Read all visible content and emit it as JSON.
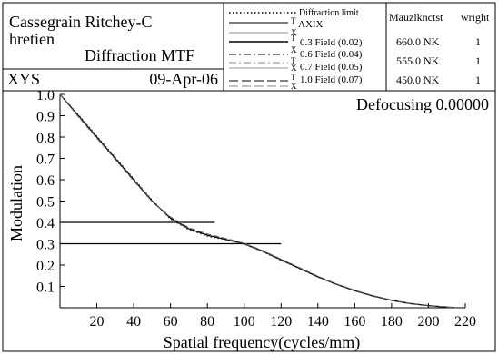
{
  "header": {
    "title_line1": "Cassegrain Ritchey-C",
    "title_line2a": "hretien",
    "title_line2b": "Diffraction MTF",
    "system": "XYS",
    "date": "09-Apr-06"
  },
  "legend": {
    "entries": [
      {
        "tag": "",
        "label": "Diffraction limit"
      },
      {
        "tag": "T",
        "label": "AXIX"
      },
      {
        "tag": "X",
        "label": ""
      },
      {
        "tag": "T",
        "label": "0.3  Field (0.02)"
      },
      {
        "tag": "X",
        "label": "0.6  Field (0.04)"
      },
      {
        "tag": "T",
        "label": ""
      },
      {
        "tag": "X",
        "label": "0.7  Field (0.05)"
      },
      {
        "tag": "T",
        "label": "1.0  Field (0.07)"
      },
      {
        "tag": "X",
        "label": ""
      }
    ]
  },
  "wavelengths": {
    "col1_header": "Mauzlknctst",
    "col2_header": "wright",
    "rows": [
      {
        "value": "660.0 NK",
        "weight": "1"
      },
      {
        "value": "555.0 NK",
        "weight": "1"
      },
      {
        "value": "450.0 NK",
        "weight": "1"
      }
    ]
  },
  "chart_data": {
    "type": "line",
    "xlabel": "Spatial frequency(cycles/mm)",
    "ylabel": "Modulation",
    "annotation": "Defocusing 0.00000",
    "xlim": [
      0,
      220
    ],
    "ylim": [
      0,
      1.0
    ],
    "xticks": [
      20,
      40,
      60,
      80,
      100,
      120,
      140,
      160,
      180,
      200,
      220
    ],
    "yticks": [
      0.1,
      0.2,
      0.3,
      0.4,
      0.5,
      0.6,
      0.7,
      0.8,
      0.9,
      1.0
    ],
    "ytick_labels": [
      "0.1",
      "0.2",
      "0.3",
      "0.4",
      "0.5",
      "0.6",
      "0.7",
      "0.8",
      "0.9",
      "1.0"
    ],
    "x": [
      0,
      10,
      20,
      30,
      40,
      50,
      60,
      70,
      80,
      90,
      100,
      110,
      120,
      130,
      140,
      150,
      160,
      170,
      180,
      190,
      200,
      210,
      215
    ],
    "series": [
      {
        "style": "solid",
        "values": [
          1.0,
          0.9,
          0.8,
          0.7,
          0.6,
          0.5,
          0.42,
          0.37,
          0.34,
          0.32,
          0.3,
          0.265,
          0.225,
          0.185,
          0.145,
          0.11,
          0.08,
          0.055,
          0.035,
          0.02,
          0.01,
          0.003,
          0.0
        ]
      },
      {
        "style": "dotted",
        "values": [
          1.0,
          0.905,
          0.805,
          0.705,
          0.605,
          0.505,
          0.415,
          0.365,
          0.335,
          0.318,
          0.298,
          0.262,
          0.222,
          0.183,
          0.144,
          0.109,
          0.079,
          0.054,
          0.034,
          0.019,
          0.009,
          0.003,
          0.0
        ]
      },
      {
        "style": "dashed",
        "values": [
          1.0,
          0.895,
          0.795,
          0.695,
          0.595,
          0.497,
          0.425,
          0.375,
          0.345,
          0.325,
          0.302,
          0.268,
          0.228,
          0.188,
          0.148,
          0.112,
          0.082,
          0.057,
          0.036,
          0.021,
          0.011,
          0.004,
          0.0
        ]
      }
    ],
    "reference_lines": [
      {
        "y": 0.4,
        "x_end": 84
      },
      {
        "y": 0.3,
        "x_end": 120
      }
    ]
  }
}
